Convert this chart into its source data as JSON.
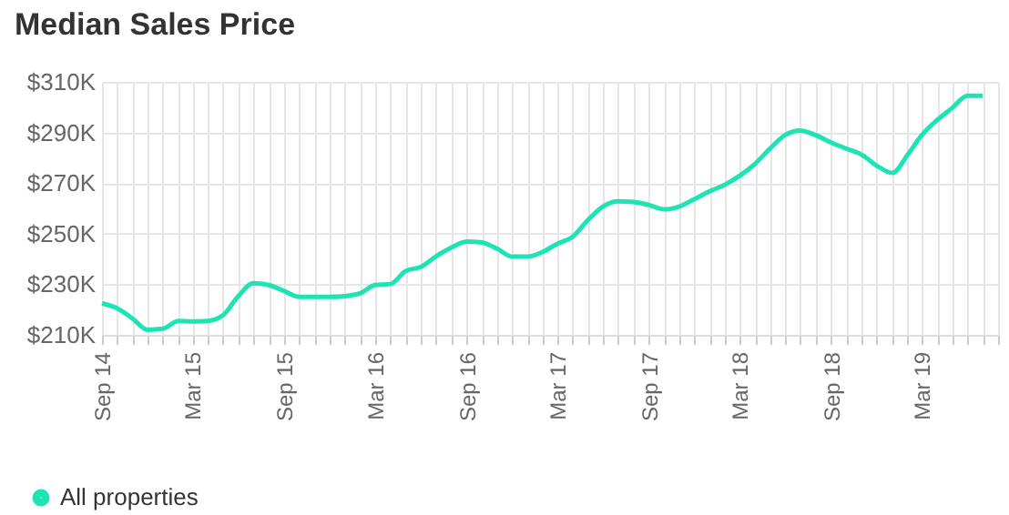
{
  "chart_data": {
    "type": "line",
    "title": "Median Sales Price",
    "x": [
      "2014-09",
      "2014-10",
      "2014-11",
      "2014-12",
      "2015-01",
      "2015-02",
      "2015-03",
      "2015-04",
      "2015-05",
      "2015-06",
      "2015-07",
      "2015-08",
      "2015-09",
      "2015-10",
      "2015-11",
      "2015-12",
      "2016-01",
      "2016-02",
      "2016-03",
      "2016-04",
      "2016-05",
      "2016-06",
      "2016-07",
      "2016-08",
      "2016-09",
      "2016-10",
      "2016-11",
      "2016-12",
      "2017-01",
      "2017-02",
      "2017-03",
      "2017-04",
      "2017-05",
      "2017-06",
      "2017-07",
      "2017-08",
      "2017-09",
      "2017-10",
      "2017-11",
      "2017-12",
      "2018-01",
      "2018-02",
      "2018-03",
      "2018-04",
      "2018-05",
      "2018-06",
      "2018-07",
      "2018-08",
      "2018-09",
      "2018-10",
      "2018-11",
      "2018-12",
      "2019-01",
      "2019-02",
      "2019-03",
      "2019-04",
      "2019-05",
      "2019-06",
      "2019-07"
    ],
    "series": [
      {
        "name": "All properties",
        "color": "#1ee3b5",
        "values": [
          222.5,
          220.5,
          216.5,
          212,
          212.4,
          215.5,
          215.3,
          215.5,
          217.7,
          225.3,
          230.4,
          229.7,
          227.3,
          225,
          225,
          225,
          225.3,
          226.5,
          229.7,
          230.1,
          235.2,
          236.9,
          241,
          244.5,
          246.9,
          246.5,
          244,
          240.9,
          240.9,
          242.9,
          246,
          248.8,
          255.3,
          260.8,
          262.8,
          262.5,
          261.3,
          259.6,
          260.8,
          263.7,
          266.8,
          269.5,
          272.8,
          277.6,
          283.6,
          289.1,
          290.8,
          288.9,
          286,
          283.6,
          281.2,
          276.9,
          274,
          281.2,
          288.9,
          294.9,
          299.7,
          304.5,
          304.5
        ]
      }
    ],
    "xlim": [
      "2014-09",
      "2019-08"
    ],
    "xticks": [
      {
        "value": "2014-09",
        "label": "Sep 14"
      },
      {
        "value": "2014-10",
        "label": null
      },
      {
        "value": "2014-11",
        "label": null
      },
      {
        "value": "2014-12",
        "label": null
      },
      {
        "value": "2015-01",
        "label": null
      },
      {
        "value": "2015-02",
        "label": null
      },
      {
        "value": "2015-03",
        "label": "Mar 15"
      },
      {
        "value": "2015-04",
        "label": null
      },
      {
        "value": "2015-05",
        "label": null
      },
      {
        "value": "2015-06",
        "label": null
      },
      {
        "value": "2015-07",
        "label": null
      },
      {
        "value": "2015-08",
        "label": null
      },
      {
        "value": "2015-09",
        "label": "Sep 15"
      },
      {
        "value": "2015-10",
        "label": null
      },
      {
        "value": "2015-11",
        "label": null
      },
      {
        "value": "2015-12",
        "label": null
      },
      {
        "value": "2016-01",
        "label": null
      },
      {
        "value": "2016-02",
        "label": null
      },
      {
        "value": "2016-03",
        "label": "Mar 16"
      },
      {
        "value": "2016-04",
        "label": null
      },
      {
        "value": "2016-05",
        "label": null
      },
      {
        "value": "2016-06",
        "label": null
      },
      {
        "value": "2016-07",
        "label": null
      },
      {
        "value": "2016-08",
        "label": null
      },
      {
        "value": "2016-09",
        "label": "Sep 16"
      },
      {
        "value": "2016-10",
        "label": null
      },
      {
        "value": "2016-11",
        "label": null
      },
      {
        "value": "2016-12",
        "label": null
      },
      {
        "value": "2017-01",
        "label": null
      },
      {
        "value": "2017-02",
        "label": null
      },
      {
        "value": "2017-03",
        "label": "Mar 17"
      },
      {
        "value": "2017-04",
        "label": null
      },
      {
        "value": "2017-05",
        "label": null
      },
      {
        "value": "2017-06",
        "label": null
      },
      {
        "value": "2017-07",
        "label": null
      },
      {
        "value": "2017-08",
        "label": null
      },
      {
        "value": "2017-09",
        "label": "Sep 17"
      },
      {
        "value": "2017-10",
        "label": null
      },
      {
        "value": "2017-11",
        "label": null
      },
      {
        "value": "2017-12",
        "label": null
      },
      {
        "value": "2018-01",
        "label": null
      },
      {
        "value": "2018-02",
        "label": null
      },
      {
        "value": "2018-03",
        "label": "Mar 18"
      },
      {
        "value": "2018-04",
        "label": null
      },
      {
        "value": "2018-05",
        "label": null
      },
      {
        "value": "2018-06",
        "label": null
      },
      {
        "value": "2018-07",
        "label": null
      },
      {
        "value": "2018-08",
        "label": null
      },
      {
        "value": "2018-09",
        "label": "Sep 18"
      },
      {
        "value": "2018-10",
        "label": null
      },
      {
        "value": "2018-11",
        "label": null
      },
      {
        "value": "2018-12",
        "label": null
      },
      {
        "value": "2019-01",
        "label": null
      },
      {
        "value": "2019-02",
        "label": null
      },
      {
        "value": "2019-03",
        "label": "Mar 19"
      },
      {
        "value": "2019-04",
        "label": null
      },
      {
        "value": "2019-05",
        "label": null
      },
      {
        "value": "2019-06",
        "label": null
      },
      {
        "value": "2019-07",
        "label": null
      },
      {
        "value": "2019-08",
        "label": null
      }
    ],
    "ylim": [
      210,
      310
    ],
    "yticks": [
      {
        "value": 210,
        "label": "$210K"
      },
      {
        "value": 230,
        "label": "$230K"
      },
      {
        "value": 250,
        "label": "$250K"
      },
      {
        "value": 270,
        "label": "$270K"
      },
      {
        "value": 290,
        "label": "$290K"
      },
      {
        "value": 310,
        "label": "$310K"
      }
    ],
    "grid": true,
    "legend": "bottom left",
    "marker": "none",
    "line_style": "solid"
  }
}
